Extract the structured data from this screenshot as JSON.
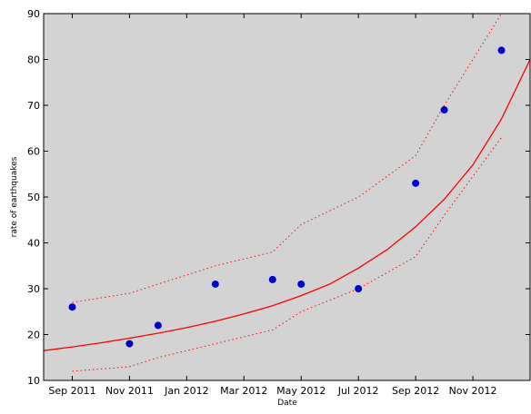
{
  "chart_data": {
    "type": "scatter",
    "x_label": "Date",
    "y_label": "rate of earthquakes",
    "background": "#d3d3d3",
    "xlim": [
      "2011-08",
      "2013-01"
    ],
    "ylim": [
      10,
      90
    ],
    "xticks": [
      {
        "value": "2011-09",
        "label": "Sep 2011"
      },
      {
        "value": "2011-11",
        "label": "Nov 2011"
      },
      {
        "value": "2012-01",
        "label": "Jan 2012"
      },
      {
        "value": "2012-03",
        "label": "Mar 2012"
      },
      {
        "value": "2012-05",
        "label": "May 2012"
      },
      {
        "value": "2012-07",
        "label": "Jul 2012"
      },
      {
        "value": "2012-09",
        "label": "Sep 2012"
      },
      {
        "value": "2012-11",
        "label": "Nov 2012"
      }
    ],
    "yticks": [
      10,
      20,
      30,
      40,
      50,
      60,
      70,
      80,
      90
    ],
    "series": [
      {
        "style": "markers",
        "color": "#0000cc",
        "x": [
          "2011-09",
          "2011-11",
          "2011-12",
          "2012-02",
          "2012-04",
          "2012-05",
          "2012-07",
          "2012-09",
          "2012-10",
          "2012-12"
        ],
        "values": [
          26,
          18,
          22,
          31,
          32,
          31,
          30,
          53,
          69,
          82
        ]
      },
      {
        "style": "solid",
        "color": "#ff0000",
        "x": [
          "2011-08",
          "2011-09",
          "2011-10",
          "2011-11",
          "2011-12",
          "2012-01",
          "2012-02",
          "2012-03",
          "2012-04",
          "2012-05",
          "2012-06",
          "2012-07",
          "2012-08",
          "2012-09",
          "2012-10",
          "2012-11",
          "2012-12",
          "2013-01"
        ],
        "values": [
          16.5,
          17.3,
          18.2,
          19.2,
          20.3,
          21.5,
          22.9,
          24.5,
          26.3,
          28.5,
          31,
          34.5,
          38.5,
          43.5,
          49.5,
          57,
          67,
          80
        ]
      },
      {
        "style": "dotted",
        "color": "#ff0000",
        "x": [
          "2011-09",
          "2011-11",
          "2011-12",
          "2012-02",
          "2012-04",
          "2012-05",
          "2012-07",
          "2012-09",
          "2012-10",
          "2012-12"
        ],
        "values": [
          27,
          29,
          31,
          35,
          38,
          44,
          50,
          59,
          70,
          90
        ]
      },
      {
        "style": "dotted",
        "color": "#ff0000",
        "x": [
          "2011-09",
          "2011-11",
          "2011-12",
          "2012-02",
          "2012-04",
          "2012-05",
          "2012-07",
          "2012-09",
          "2012-10",
          "2012-12"
        ],
        "values": [
          12,
          13,
          15,
          18,
          21,
          25,
          30,
          37,
          46,
          63
        ]
      }
    ]
  }
}
